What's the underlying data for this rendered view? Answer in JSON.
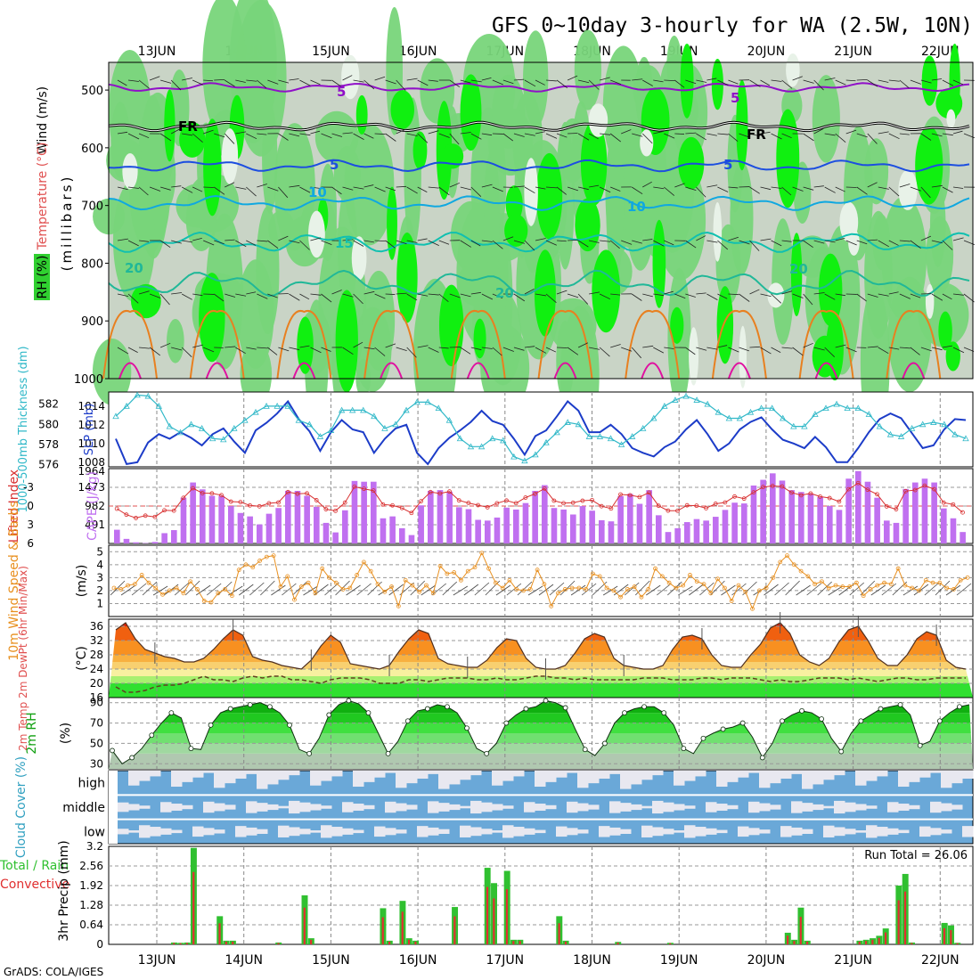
{
  "title": "GFS 0~10day 3-hourly for WA (2.5W, 10N)",
  "footer": "GrADS: COLA/IGES",
  "dates": [
    "13JUN",
    "14JUN",
    "15JUN",
    "16JUN",
    "17JUN",
    "18JUN",
    "19JUN",
    "20JUN",
    "21JUN",
    "22JUN"
  ],
  "colors": {
    "rh_light": "#c8d3c5",
    "rh_mid": "#78d57a",
    "rh_bright": "#10f010",
    "rh_pale": "#e8f2e8",
    "temp_purple": "#9010c8",
    "temp_blue": "#1c4ee0",
    "temp_cyan": "#10a8e0",
    "temp_teal": "#10c0b0",
    "temp_orange": "#e88020",
    "temp_magenta": "#e010a0",
    "slp": "#1c3cc8",
    "thickness": "#30b8c8",
    "lifted": "#d83030",
    "cape": "#c070f0",
    "wind": "#e89020",
    "tmax": "#e03010",
    "rh2m": "#10a010",
    "cloud": "#6aa8d8",
    "cloud_gap": "#e8e8f0",
    "precip_total": "#30c030",
    "precip_conv": "#e03030"
  },
  "panels": {
    "upper_air": {
      "ylabel_wind": "Wind (m/s)",
      "ylabel_temp": "Temperature (°C)",
      "ylabel_rh": "RH (%)",
      "ylabel_units": "(millibars)",
      "levels": [
        "500",
        "600",
        "700",
        "800",
        "900",
        "1000"
      ],
      "contour_labels": [
        "5",
        "FR",
        "5",
        "10",
        "15",
        "20",
        "20",
        "FR",
        "5",
        "10",
        "20",
        "5"
      ]
    },
    "slp": {
      "ylabel_left": "1000-500mb Thickness (dm)",
      "ylabel_right": "SLP (mb)",
      "left_ticks": [
        "582",
        "580",
        "578",
        "576"
      ],
      "right_ticks": [
        "1014",
        "1012",
        "1010",
        "1008"
      ]
    },
    "lifted": {
      "ylabel_left": "Lifted Index",
      "ylabel_right": "CAPE (J/kg)",
      "left_ticks": [
        "-3",
        "0",
        "3",
        "6"
      ],
      "right_ticks": [
        "1964",
        "1473",
        "982",
        "491"
      ]
    },
    "wind10m": {
      "ylabel": "10m Wind Speed & Barbs",
      "units": "(m/s)",
      "ticks": [
        "5",
        "4",
        "3",
        "2",
        "1"
      ]
    },
    "temp2m": {
      "ylabel": "2m Temp 2m DewPt (6hr Min/Max)",
      "units": "(°C)",
      "ticks": [
        "36",
        "32",
        "28",
        "24",
        "20",
        "16"
      ]
    },
    "rh2m": {
      "ylabel": "2m RH",
      "units": "(%)",
      "ticks": [
        "90",
        "70",
        "50",
        "30"
      ]
    },
    "cloud": {
      "ylabel": "Cloud Cover (%)",
      "rows": [
        "high",
        "middle",
        "low"
      ]
    },
    "precip": {
      "ylabel_total": "Total / Rain",
      "ylabel_conv": "Convective",
      "ylabel": "3hr Precip (mm)",
      "ticks": [
        "3.2",
        "2.56",
        "1.92",
        "1.28",
        "0.64",
        "0"
      ],
      "run_total": "Run Total = 26.06"
    }
  },
  "chart_data": [
    {
      "type": "line",
      "name": "1000-500mb Thickness / SLP",
      "x_start": "12JUN 12Z",
      "x_step_hours": 3,
      "series": [
        {
          "name": "SLP (mb)",
          "ylim": [
            1007.5,
            1015.5
          ],
          "values": [
            1010.5,
            1007.8,
            1008,
            1010.1,
            1011,
            1010.5,
            1011.2,
            1010.6,
            1009.8,
            1011,
            1011.6,
            1010.2,
            1009,
            1011.4,
            1012.2,
            1013.2,
            1014.5,
            1012.6,
            1011.3,
            1009.2,
            1011.2,
            1012.5,
            1011.5,
            1011.2,
            1009,
            1010.5,
            1011.6,
            1012,
            1009,
            1007.8,
            1009.5,
            1010.6,
            1011.4,
            1012.3,
            1013.5,
            1012.4,
            1012,
            1010.5,
            1008.8,
            1010.8,
            1011.4,
            1012.9,
            1014.5,
            1013.5,
            1011.2,
            1011.2,
            1012,
            1011,
            1009.5,
            1009,
            1008.6,
            1009.6,
            1010.2,
            1011.5,
            1012.5,
            1011,
            1009.2,
            1010,
            1011.5,
            1012.3,
            1012.8,
            1011.5,
            1010.4,
            1010,
            1009.5,
            1010.7,
            1009.6,
            1008,
            1008,
            1009.5,
            1011.2,
            1012.6,
            1013.2,
            1012.7,
            1011.1,
            1009.5,
            1009.8,
            1011.5,
            1012.6,
            1012.5
          ]
        },
        {
          "name": "1000-500mb Thickness (dm)",
          "ylim": [
            575.8,
            583.2
          ],
          "values": [
            580.8,
            581.8,
            582.9,
            582.8,
            581.8,
            579.8,
            579.2,
            580,
            579.6,
            578.6,
            578.5,
            579.6,
            580.4,
            581.2,
            581.8,
            581.8,
            581.8,
            580.4,
            580,
            578.8,
            579.4,
            581.4,
            581.4,
            581.4,
            580.8,
            579.6,
            580,
            581.4,
            582.2,
            582.2,
            581.6,
            580.4,
            578.6,
            577.8,
            577.8,
            578.6,
            578.4,
            576.8,
            576.4,
            577,
            578.2,
            579.2,
            580.2,
            580,
            578.8,
            578.8,
            578.6,
            578,
            578.8,
            579.6,
            580.6,
            581.8,
            582.4,
            582.8,
            582.4,
            582,
            581.2,
            580.6,
            580.6,
            581.2,
            581.6,
            581.6,
            580.6,
            579.8,
            579.8,
            581,
            581.6,
            582,
            581.6,
            581.6,
            581,
            579.8,
            579,
            578.8,
            579.6,
            580,
            580.2,
            580,
            579,
            578.6
          ]
        }
      ]
    },
    {
      "type": "bar",
      "name": "CAPE / Lifted Index",
      "x_start": "12JUN 12Z",
      "x_step_hours": 3,
      "cape_ylim": [
        0,
        1964
      ],
      "cape": [
        360,
        120,
        30,
        10,
        40,
        270,
        350,
        1200,
        1600,
        1420,
        1250,
        1250,
        980,
        800,
        710,
        500,
        780,
        930,
        1380,
        1380,
        1250,
        960,
        540,
        290,
        870,
        1640,
        1620,
        1620,
        660,
        710,
        400,
        220,
        1000,
        1380,
        1400,
        1360,
        950,
        900,
        620,
        600,
        680,
        940,
        890,
        1060,
        1380,
        1530,
        930,
        890,
        760,
        980,
        860,
        610,
        580,
        1240,
        1300,
        1040,
        1400,
        740,
        300,
        400,
        560,
        640,
        600,
        700,
        880,
        1070,
        1050,
        1520,
        1670,
        1840,
        1650,
        1400,
        1350,
        1300,
        1220,
        980,
        880,
        1700,
        1900,
        1620,
        1200,
        600,
        540,
        1430,
        1600,
        1700,
        1600,
        920,
        660,
        300
      ]
    },
    {
      "type": "line",
      "name": "10m Wind Speed (m/s)",
      "ylim": [
        0,
        5.5
      ],
      "values": [
        2.2,
        2.1,
        2.4,
        2.5,
        3.2,
        2.6,
        2.2,
        1.7,
        2,
        2.2,
        1.8,
        2.7,
        2.1,
        1.2,
        1.1,
        1.8,
        2.1,
        1.6,
        3.6,
        4,
        3.8,
        4.3,
        4.6,
        4.7,
        2.3,
        3.1,
        1.3,
        2.3,
        2.6,
        1.8,
        3.7,
        3,
        2.6,
        2.1,
        2.2,
        3.2,
        4.2,
        3.5,
        2.5,
        1.9,
        2.3,
        0.8,
        2.8,
        2.4,
        1.9,
        2.4,
        1.8,
        3.9,
        3.3,
        3.4,
        2.8,
        3.5,
        3.8,
        4.9,
        3.7,
        2.6,
        2.2,
        2.8,
        2.1,
        2,
        2.1,
        3.6,
        2.5,
        0.8,
        1.8,
        2.1,
        2.2,
        2.2,
        2.1,
        3.3,
        3.1,
        2.2,
        2,
        1.5,
        2.1,
        2.3,
        1.5,
        2.1,
        3.7,
        3.1,
        2.6,
        2.2,
        2.4,
        3.2,
        2.7,
        2.5,
        1.8,
        2.9,
        2.2,
        1.2,
        2.4,
        1.9,
        0.6,
        2,
        2.2,
        3,
        4.2,
        4.7,
        4,
        3.5,
        3.1,
        2.5,
        2.7,
        2.2,
        2.4,
        2.3,
        2.3,
        2.6,
        1.6,
        2.1,
        2.4,
        2.6,
        2.5,
        3.7,
        2.4,
        2.2,
        2,
        2.8,
        2.6,
        2.6,
        2.2,
        2.1,
        2.8,
        3
      ]
    },
    {
      "type": "area",
      "name": "2m Temp (°C)",
      "ylim": [
        16,
        38
      ],
      "temp": [
        35,
        37,
        32.5,
        29.5,
        28.5,
        27.5,
        27,
        26,
        26,
        27,
        29.5,
        32.5,
        35,
        33.5,
        27.5,
        26.5,
        26,
        25,
        24.5,
        24,
        26.5,
        30.5,
        33.5,
        31.5,
        25.5,
        25,
        24.5,
        24,
        25,
        29,
        32.5,
        35,
        34,
        27,
        25.5,
        25,
        24.5,
        24.5,
        26.5,
        30,
        32.5,
        32,
        27,
        24.5,
        24,
        24,
        25,
        28.5,
        32.5,
        34,
        33,
        27,
        25,
        24.5,
        24,
        24,
        25,
        29.5,
        33,
        33.5,
        32.5,
        28,
        25,
        24.5,
        24.5,
        28,
        31,
        35.5,
        37,
        34,
        28,
        26,
        25,
        27,
        31.5,
        35,
        36,
        32,
        27,
        25,
        25,
        28,
        32.5,
        34.5,
        33.5,
        26.5,
        24.5,
        24
      ],
      "dewpt": [
        19,
        17.5,
        17.5,
        18,
        19,
        19.5,
        19.5,
        20,
        21,
        22,
        21,
        21,
        20.5,
        21.5,
        22,
        21.5,
        22,
        22,
        21,
        21,
        20.5,
        20,
        21,
        21.5,
        21.5,
        21.5,
        21,
        20,
        20,
        20,
        21,
        21,
        20.5,
        21,
        21.5,
        21.5,
        21.5,
        21,
        21,
        21.5,
        21,
        21,
        21.5,
        22,
        22,
        21.5,
        21.5,
        21,
        21.5,
        21,
        21,
        21,
        21,
        21,
        21.5,
        21.5,
        21.5,
        21,
        21,
        21,
        21.5,
        21.5,
        21,
        21.5,
        21.5,
        21.5,
        21,
        20.5,
        21,
        20.5,
        20.5,
        21,
        21.5,
        21.5,
        21.5,
        21,
        21.5,
        21,
        20.5,
        21,
        21.5,
        21.5,
        21,
        21,
        21.5,
        21.5,
        21.5,
        21.5
      ]
    },
    {
      "type": "area",
      "name": "2m RH (%)",
      "ylim": [
        25,
        95
      ],
      "values": [
        43,
        30,
        36,
        45,
        58,
        70,
        80,
        75,
        45,
        44,
        68,
        80,
        84,
        86,
        88,
        90,
        86,
        80,
        68,
        44,
        40,
        55,
        78,
        88,
        92,
        89,
        80,
        60,
        40,
        52,
        72,
        82,
        84,
        88,
        86,
        80,
        65,
        45,
        40,
        50,
        70,
        78,
        84,
        86,
        92,
        90,
        85,
        64,
        44,
        38,
        50,
        70,
        80,
        84,
        86,
        86,
        80,
        68,
        45,
        40,
        55,
        60,
        64,
        66,
        70,
        56,
        36,
        50,
        72,
        78,
        82,
        80,
        74,
        55,
        42,
        60,
        72,
        78,
        84,
        86,
        88,
        78,
        48,
        52,
        72,
        80,
        86,
        88
      ]
    },
    {
      "type": "bar",
      "name": "3hr Precip (mm)",
      "ylim": [
        0,
        3.2
      ],
      "total": [
        0,
        0,
        0,
        0,
        0,
        0,
        0,
        0,
        0,
        0.06,
        0.05,
        0.06,
        3.15,
        0,
        0,
        0,
        0.92,
        0.12,
        0.12,
        0,
        0,
        0,
        0,
        0,
        0,
        0.06,
        0,
        0,
        0,
        1.6,
        0.2,
        0,
        0,
        0,
        0,
        0,
        0,
        0,
        0,
        0,
        0,
        1.18,
        0.12,
        0,
        1.42,
        0.2,
        0.12,
        0,
        0,
        0,
        0,
        0,
        1.22,
        0,
        0,
        0,
        0,
        2.5,
        2.0,
        0,
        2.4,
        0.15,
        0.15,
        0,
        0,
        0,
        0,
        0,
        0.92,
        0.12,
        0,
        0,
        0,
        0,
        0,
        0,
        0,
        0.08,
        0,
        0,
        0,
        0,
        0,
        0,
        0,
        0.05,
        0,
        0,
        0,
        0,
        0,
        0,
        0,
        0,
        0,
        0,
        0,
        0,
        0,
        0,
        0,
        0,
        0,
        0.38,
        0.15,
        1.2,
        0.12,
        0,
        0,
        0,
        0,
        0,
        0,
        0,
        0.12,
        0.15,
        0.2,
        0.28,
        0.52,
        0,
        1.92,
        2.3,
        0.06,
        0,
        0,
        0,
        0,
        0.7,
        0.62,
        0.05,
        0
      ]
    },
    {
      "type": "heatmap",
      "name": "Cloud Cover (%)",
      "rows": [
        "high",
        "middle",
        "low"
      ]
    }
  ]
}
